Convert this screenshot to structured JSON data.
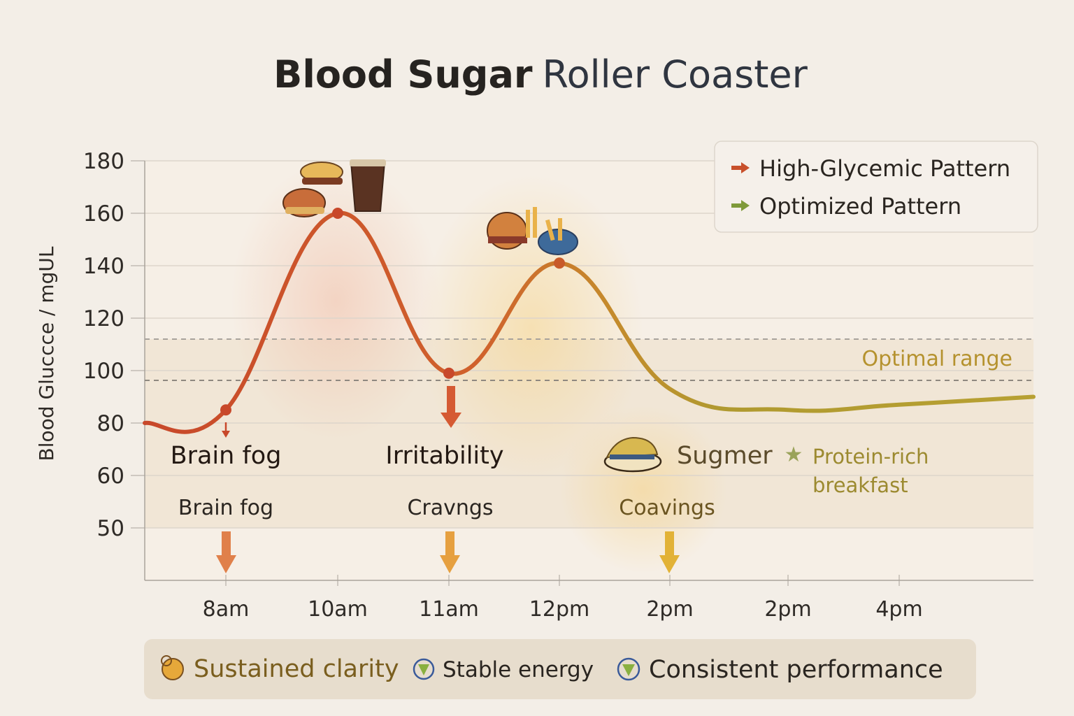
{
  "chart_data": {
    "type": "line",
    "title_bold": "Blood Sugar",
    "title_rest": "Roller Coaster",
    "ylabel": "Blood Gluccce / mgUL",
    "y_ticks": [
      50,
      60,
      80,
      100,
      120,
      140,
      160,
      180
    ],
    "ylim": [
      50,
      180
    ],
    "categories": [
      "8am",
      "10am",
      "11am",
      "12pm",
      "2pm",
      "2pm",
      "4pm"
    ],
    "grid": true,
    "legend_position": "top-right",
    "series": [
      {
        "name": "High-Glycemic Pattern",
        "color": "#c8502b",
        "values": [
          85,
          160,
          99,
          141,
          93,
          85,
          87
        ],
        "lead_in": 80,
        "lead_out": 90
      },
      {
        "name": "Optimized Pattern",
        "color": "#7f9a3a"
      }
    ],
    "optimal_range": {
      "label": "Optimal range",
      "low": 96,
      "high": 112
    },
    "annotations": {
      "brain_fog_big": "Brain fog",
      "irritability": "Irritability",
      "sugmer": "Sugmer",
      "protein_line1": "Protein-rich",
      "protein_line2": "breakfast",
      "brain_fog_small": "Brain fog",
      "cravings": "Cravngs",
      "coavings": "Coavings"
    },
    "footer": [
      "Sustained clarity",
      "Stable energy",
      "Consistent performance"
    ]
  }
}
